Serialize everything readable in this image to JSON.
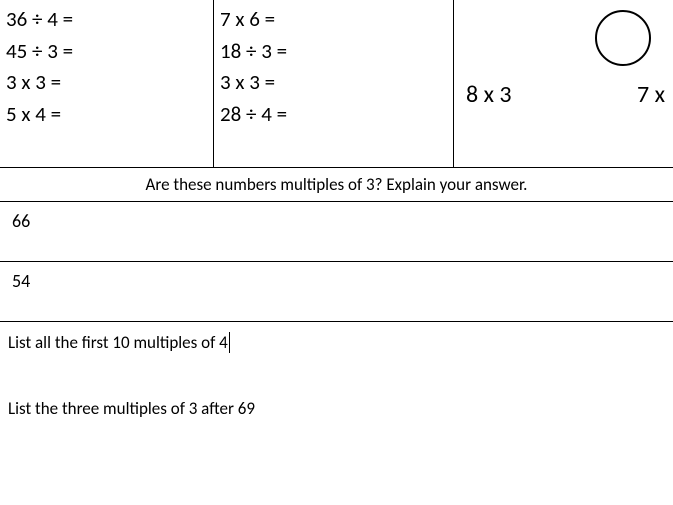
{
  "top": {
    "col1": {
      "eq1": "36 ÷ 4 =",
      "eq2": "45 ÷ 3 =",
      "eq3": "3 x 3 =",
      "eq4": "5 x 4 ="
    },
    "col2": {
      "eq1": "7 x 6 =",
      "eq2": "18 ÷ 3 =",
      "eq3": "3 x 3 =",
      "eq4": "28 ÷ 4 ="
    },
    "col3": {
      "left_expr": "8 x 3",
      "right_expr": "7 x"
    }
  },
  "question_header": "Are these numbers multiples of 3?  Explain your answer.",
  "answers": {
    "row1": "66",
    "row2": "54"
  },
  "prompts": {
    "p1": "List all the first 10 multiples of 4",
    "p2": "List the three multiples of 3 after 69"
  },
  "style": {
    "font_family": "Calibri, Arial, sans-serif",
    "text_color": "#000000",
    "background_color": "#ffffff",
    "border_color": "#000000",
    "eq_fontsize": 21,
    "header_fontsize": 17,
    "answer_fontsize": 18,
    "compare_fontsize": 24,
    "circle_diameter": 56,
    "circle_border_width": 2
  }
}
